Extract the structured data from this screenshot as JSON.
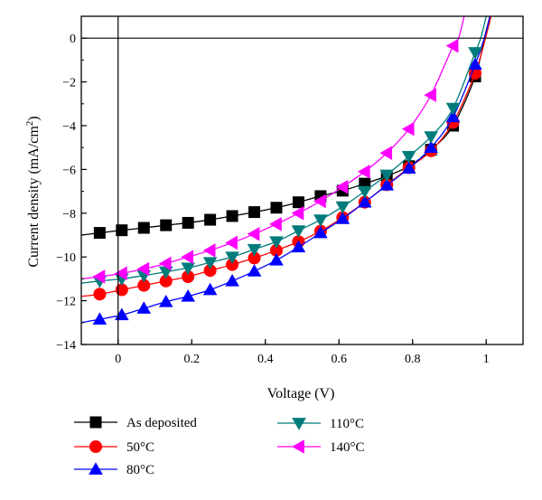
{
  "chart_data": {
    "type": "line",
    "xlabel": "Voltage (V)",
    "ylabel_main": "Current density (mA/cm",
    "ylabel_sup": "2",
    "ylabel_close": ")",
    "xlim": [
      -0.1,
      1.1
    ],
    "ylim": [
      -14,
      1
    ],
    "xticks": [
      0,
      0.2,
      0.4,
      0.6,
      0.8,
      1
    ],
    "xtick_labels": [
      "0",
      "0.2",
      "0.4",
      "0.6",
      "0.8",
      "1"
    ],
    "yticks": [
      0,
      -2,
      -4,
      -6,
      -8,
      -10,
      -12,
      -14
    ],
    "ytick_labels": [
      "0",
      "−2",
      "−4",
      "−6",
      "−8",
      "−10",
      "−12",
      "−14"
    ],
    "zero_lines": true,
    "grid": false,
    "legend_placement": "below",
    "x": [
      -0.05,
      0.01,
      0.07,
      0.13,
      0.19,
      0.25,
      0.31,
      0.37,
      0.43,
      0.49,
      0.55,
      0.61,
      0.67,
      0.73,
      0.79,
      0.85,
      0.91,
      0.97
    ],
    "series": [
      {
        "name": "As deposited",
        "marker": "square",
        "color": "#000000",
        "curve_x": [
          -0.1,
          -0.05,
          0.01,
          0.07,
          0.13,
          0.19,
          0.25,
          0.31,
          0.37,
          0.43,
          0.49,
          0.55,
          0.61,
          0.67,
          0.73,
          0.79,
          0.85,
          0.91,
          0.97,
          0.995,
          1.01
        ],
        "curve_y": [
          -9.0,
          -8.9,
          -8.78,
          -8.67,
          -8.55,
          -8.44,
          -8.3,
          -8.13,
          -7.95,
          -7.75,
          -7.5,
          -7.22,
          -6.97,
          -6.65,
          -6.3,
          -5.85,
          -5.1,
          -4.0,
          -1.75,
          0.0,
          1.0
        ],
        "values": [
          -8.9,
          -8.78,
          -8.67,
          -8.55,
          -8.44,
          -8.3,
          -8.13,
          -7.95,
          -7.75,
          -7.5,
          -7.22,
          -6.97,
          -6.65,
          -6.3,
          -5.85,
          -5.1,
          -4.0,
          -1.75
        ]
      },
      {
        "name": "50°C",
        "marker": "circle",
        "color": "#ff0000",
        "curve_x": [
          -0.1,
          -0.05,
          0.01,
          0.07,
          0.13,
          0.19,
          0.25,
          0.31,
          0.37,
          0.43,
          0.49,
          0.55,
          0.61,
          0.67,
          0.73,
          0.79,
          0.85,
          0.91,
          0.97,
          0.998,
          1.013
        ],
        "curve_y": [
          -11.8,
          -11.7,
          -11.5,
          -11.3,
          -11.1,
          -10.9,
          -10.62,
          -10.35,
          -10.05,
          -9.7,
          -9.3,
          -8.82,
          -8.2,
          -7.5,
          -6.7,
          -5.92,
          -5.15,
          -3.85,
          -1.6,
          0.0,
          1.0
        ],
        "values": [
          -11.7,
          -11.5,
          -11.3,
          -11.1,
          -10.9,
          -10.62,
          -10.35,
          -10.05,
          -9.7,
          -9.3,
          -8.82,
          -8.2,
          -7.5,
          -6.7,
          -5.92,
          -5.15,
          -3.85,
          -1.6
        ]
      },
      {
        "name": "80°C",
        "marker": "triangle-up",
        "color": "#0000ff",
        "curve_x": [
          -0.1,
          -0.05,
          0.01,
          0.07,
          0.13,
          0.19,
          0.25,
          0.31,
          0.37,
          0.43,
          0.49,
          0.55,
          0.61,
          0.67,
          0.73,
          0.79,
          0.85,
          0.91,
          0.97,
          0.995,
          1.01
        ],
        "curve_y": [
          -13.0,
          -12.85,
          -12.65,
          -12.35,
          -12.05,
          -11.8,
          -11.5,
          -11.1,
          -10.65,
          -10.15,
          -9.55,
          -8.9,
          -8.25,
          -7.5,
          -6.72,
          -5.95,
          -5.0,
          -3.6,
          -1.2,
          0.0,
          1.0
        ],
        "values": [
          -12.85,
          -12.65,
          -12.35,
          -12.05,
          -11.8,
          -11.5,
          -11.1,
          -10.65,
          -10.15,
          -9.55,
          -8.9,
          -8.25,
          -7.5,
          -6.72,
          -5.95,
          -5.0,
          -3.6,
          -1.2
        ]
      },
      {
        "name": "110°C",
        "marker": "triangle-down",
        "color": "#007b7b",
        "curve_x": [
          -0.1,
          -0.05,
          0.01,
          0.07,
          0.13,
          0.19,
          0.25,
          0.31,
          0.37,
          0.43,
          0.49,
          0.55,
          0.61,
          0.67,
          0.73,
          0.79,
          0.85,
          0.91,
          0.97,
          0.985,
          1.0
        ],
        "curve_y": [
          -11.2,
          -11.1,
          -11.0,
          -10.85,
          -10.68,
          -10.5,
          -10.25,
          -10.0,
          -9.65,
          -9.3,
          -8.8,
          -8.3,
          -7.7,
          -7.0,
          -6.25,
          -5.4,
          -4.5,
          -3.2,
          -0.65,
          0.0,
          1.0
        ],
        "values": [
          -11.1,
          -11.0,
          -10.85,
          -10.68,
          -10.5,
          -10.25,
          -10.0,
          -9.65,
          -9.3,
          -8.8,
          -8.3,
          -7.7,
          -7.0,
          -6.25,
          -5.4,
          -4.5,
          -3.2,
          -0.65
        ]
      },
      {
        "name": "140°C",
        "marker": "triangle-left",
        "color": "#ff00ff",
        "curve_x": [
          -0.1,
          -0.05,
          0.01,
          0.07,
          0.13,
          0.19,
          0.25,
          0.31,
          0.37,
          0.43,
          0.49,
          0.55,
          0.61,
          0.67,
          0.73,
          0.79,
          0.85,
          0.91,
          0.925,
          0.94
        ],
        "curve_y": [
          -11.0,
          -10.9,
          -10.75,
          -10.55,
          -10.3,
          -10.0,
          -9.7,
          -9.35,
          -8.95,
          -8.5,
          -8.0,
          -7.45,
          -6.8,
          -6.1,
          -5.25,
          -4.15,
          -2.6,
          -0.35,
          0.0,
          1.0
        ],
        "values": [
          -10.9,
          -10.75,
          -10.55,
          -10.3,
          -10.0,
          -9.7,
          -9.35,
          -8.95,
          -8.5,
          -8.0,
          -7.45,
          -6.8,
          -6.1,
          -5.25,
          -4.15,
          -2.6,
          -0.35,
          null
        ]
      }
    ]
  }
}
